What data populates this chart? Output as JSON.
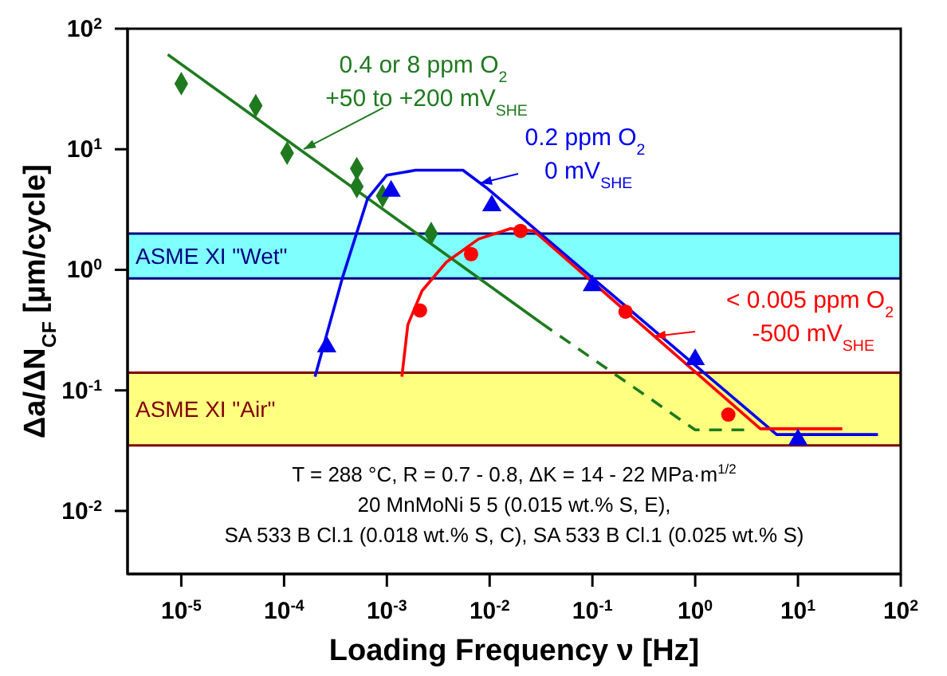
{
  "chart_data": {
    "type": "line",
    "xlabel": "Loading Frequency ν [Hz]",
    "ylabel": "Δa/ΔN$_{CF}$ [µm/cycle]",
    "log": "xy",
    "grid": false,
    "legend": false,
    "xlim": [
      3e-06,
      100
    ],
    "ylim": [
      0.003,
      100
    ],
    "xticks": [
      {
        "value": 1e-05,
        "label": "10$^{-5}$"
      },
      {
        "value": 0.0001,
        "label": "10$^{-4}$"
      },
      {
        "value": 0.001,
        "label": "10$^{-3}$"
      },
      {
        "value": 0.01,
        "label": "10$^{-2}$"
      },
      {
        "value": 0.1,
        "label": "10$^{-1}$"
      },
      {
        "value": 1,
        "label": "10$^{0}$"
      },
      {
        "value": 10,
        "label": "10$^{1}$"
      },
      {
        "value": 100,
        "label": "10$^{2}$"
      }
    ],
    "yticks": [
      {
        "value": 0.01,
        "label": "10$^{-2}$"
      },
      {
        "value": 0.1,
        "label": "10$^{-1}$"
      },
      {
        "value": 1,
        "label": "10$^{0}$"
      },
      {
        "value": 10,
        "label": "10$^{1}$"
      },
      {
        "value": 100,
        "label": "10$^{2}$"
      }
    ],
    "series": [
      {
        "type": "scatter",
        "marker": "diamond",
        "color": "#1f7a1f",
        "x": [
          1e-05,
          5.3e-05,
          0.000107,
          0.00051,
          0.00051,
          0.00091,
          0.0027
        ],
        "values": [
          35,
          23,
          9.3,
          6.9,
          4.9,
          4.1,
          2.0
        ]
      },
      {
        "marker": "none",
        "line_style": "solid",
        "color": "#1f7a1f",
        "x": [
          7.4e-06,
          0.032
        ],
        "values": [
          61,
          0.36
        ]
      },
      {
        "marker": "none",
        "line_style": "dashed",
        "color": "#1f7a1f",
        "x": [
          0.032,
          1,
          3
        ],
        "values": [
          0.36,
          0.047,
          0.047
        ]
      },
      {
        "marker": "none",
        "line_style": "solid",
        "color": "#0000ee",
        "x": [
          0.0002,
          0.00037,
          0.00065,
          0.001,
          0.0019,
          0.0055,
          0.0093,
          6.2,
          60
        ],
        "values": [
          0.13,
          0.86,
          3.9,
          6.1,
          6.7,
          6.7,
          4.8,
          0.043,
          0.043
        ]
      },
      {
        "type": "scatter",
        "marker": "triangle",
        "color": "#0000ee",
        "x": [
          0.00026,
          0.0011,
          0.0105,
          0.1,
          1,
          10
        ],
        "values": [
          0.23,
          4.5,
          3.4,
          0.74,
          0.18,
          0.039
        ]
      },
      {
        "marker": "none",
        "line_style": "solid",
        "color": "#ff0000",
        "x": [
          0.0014,
          0.0016,
          0.0022,
          0.0038,
          0.0078,
          0.016,
          0.027,
          4.3,
          27
        ],
        "values": [
          0.13,
          0.35,
          0.67,
          1.16,
          1.8,
          2.2,
          2.1,
          0.048,
          0.048
        ]
      },
      {
        "type": "scatter",
        "marker": "circle",
        "color": "#ff0000",
        "x": [
          0.0021,
          0.0066,
          0.02,
          0.21,
          2.1
        ],
        "values": [
          0.46,
          1.35,
          2.1,
          0.45,
          0.063
        ]
      }
    ],
    "bands": [
      {
        "axis": "y",
        "from": 0.85,
        "to": 2.0,
        "label": "ASME XI \"Wet\"",
        "color": "#80ffff"
      },
      {
        "axis": "y",
        "from": 0.035,
        "to": 0.14,
        "label": "ASME XI \"Air\"",
        "color": "#ffff80"
      }
    ],
    "annotations": [
      {
        "text": "0.4 or 8 ppm O$_{2}$\n+50 to +200 mV$_{SHE}$",
        "x": 0.000155,
        "y": 10
      },
      "0.2 ppm O$_{2}$\n0 mV$_{SHE}$",
      "< 0.005 ppm O$_{2}$\n-500 mV$_{SHE}$",
      "T = 288 °C, R = 0.7 - 0.8, ΔK = 14 - 22 MPa·m$^{1/2}$",
      "20 MnMoNi 5 5 (0.015 wt.% S, E),",
      "SA 533 B Cl.1 (0.018 wt.% S, C), SA 533 B Cl.1 (0.025 wt.% S)"
    ]
  }
}
